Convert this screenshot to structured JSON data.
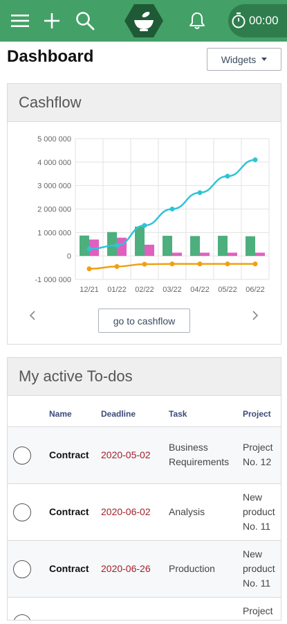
{
  "topbar": {
    "icons": [
      "menu-icon",
      "plus-icon",
      "search-icon",
      "bowl-logo-icon",
      "bell-icon",
      "stopwatch-icon"
    ],
    "timer": "00:00",
    "color": "#43a067"
  },
  "dashboard": {
    "title": "Dashboard",
    "widgets_button": "Widgets"
  },
  "cashflow": {
    "title": "Cashflow",
    "goto_button": "go to cashflow"
  },
  "chart_data": {
    "type": "bar",
    "title": "",
    "categories": [
      "12/21",
      "01/22",
      "02/22",
      "03/22",
      "04/22",
      "05/22",
      "06/22"
    ],
    "y_ticks": [
      "5 000 000",
      "4 000 000",
      "3 000 000",
      "2 000 000",
      "1 000 000",
      "0",
      "-1 000 000"
    ],
    "ylim": [
      -1000000,
      5000000
    ],
    "grid": true,
    "series": [
      {
        "type": "bar",
        "color": "#4caf7d",
        "values": [
          870000,
          1020000,
          1250000,
          860000,
          850000,
          860000,
          840000
        ]
      },
      {
        "type": "bar",
        "color": "#e060c0",
        "values": [
          700000,
          780000,
          480000,
          140000,
          140000,
          140000,
          140000
        ]
      },
      {
        "type": "line",
        "color": "#2ec4d8",
        "values": [
          300000,
          450000,
          1300000,
          2000000,
          2700000,
          3400000,
          4100000
        ]
      },
      {
        "type": "line",
        "color": "#f0a010",
        "values": [
          -550000,
          -450000,
          -350000,
          -340000,
          -340000,
          -340000,
          -340000
        ]
      }
    ]
  },
  "todos": {
    "title": "My active To-dos",
    "columns": [
      "Name",
      "Deadline",
      "Task",
      "Project"
    ],
    "rows": [
      {
        "name": "Contract",
        "deadline": "2020-05-02",
        "task": [
          "Business",
          "Requirements"
        ],
        "project": [
          "Project",
          "No. 12"
        ]
      },
      {
        "name": "Contract",
        "deadline": "2020-06-02",
        "task": [
          "Analysis"
        ],
        "project": [
          "New",
          "product",
          "No. 11"
        ]
      },
      {
        "name": "Contract",
        "deadline": "2020-06-26",
        "task": [
          "Production"
        ],
        "project": [
          "New",
          "product",
          "No. 11"
        ]
      }
    ],
    "partial_row_project": "Project"
  }
}
